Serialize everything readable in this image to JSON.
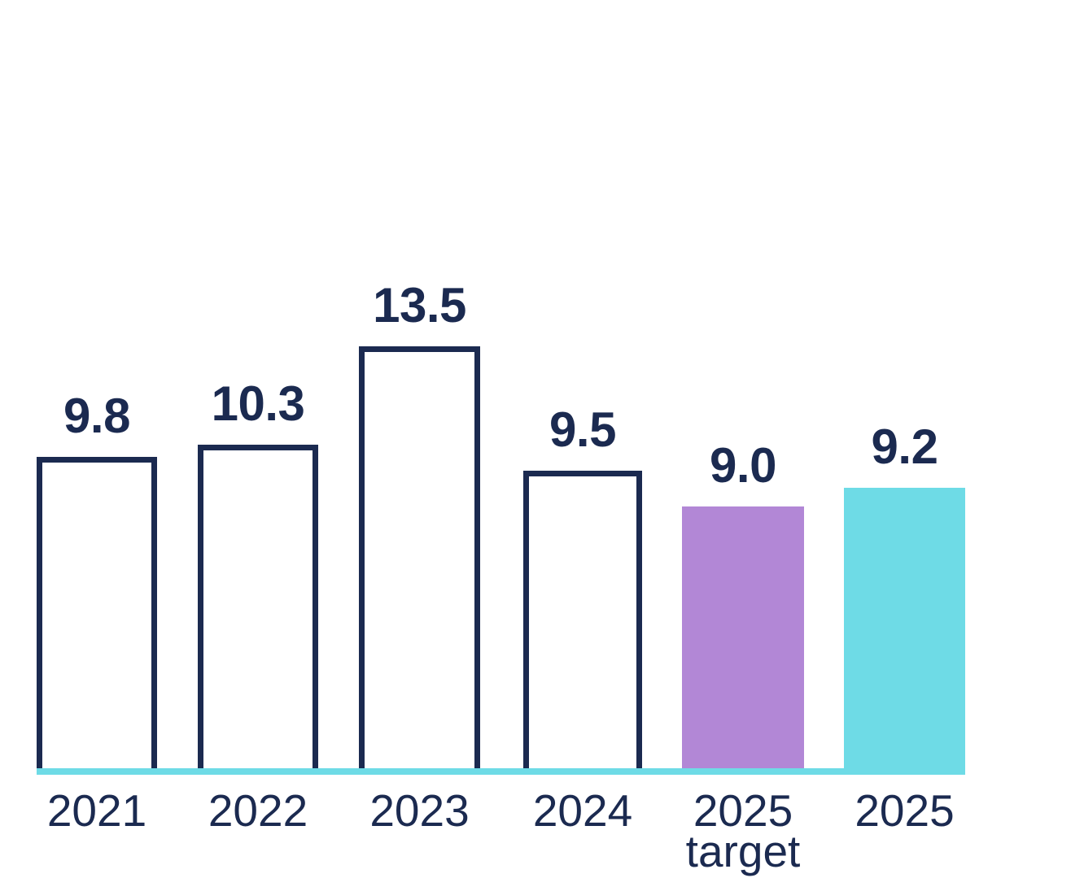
{
  "chart_data": {
    "type": "bar",
    "title": "",
    "xlabel": "",
    "ylabel": "",
    "ylim": [
      0,
      14
    ],
    "grid": false,
    "legend": false,
    "categories": [
      "2021",
      "2022",
      "2023",
      "2024",
      "2025 target",
      "2025"
    ],
    "values": [
      9.8,
      10.3,
      13.5,
      9.5,
      9.0,
      9.2
    ],
    "bars": [
      {
        "category": "2021",
        "value": 9.8,
        "value_label": "9.8",
        "x_label_line1": "2021",
        "x_label_line2": "",
        "style": "outlined-white"
      },
      {
        "category": "2022",
        "value": 10.3,
        "value_label": "10.3",
        "x_label_line1": "2022",
        "x_label_line2": "",
        "style": "outlined-white"
      },
      {
        "category": "2023",
        "value": 13.5,
        "value_label": "13.5",
        "x_label_line1": "2023",
        "x_label_line2": "",
        "style": "outlined-white"
      },
      {
        "category": "2024",
        "value": 9.5,
        "value_label": "9.5",
        "x_label_line1": "2024",
        "x_label_line2": "",
        "style": "outlined-white"
      },
      {
        "category": "2025 target",
        "value": 9.0,
        "value_label": "9.0",
        "x_label_line1": "2025",
        "x_label_line2": "target",
        "style": "filled-purple"
      },
      {
        "category": "2025",
        "value": 9.2,
        "value_label": "9.2",
        "x_label_line1": "2025",
        "x_label_line2": "",
        "style": "filled-cyan"
      }
    ],
    "colors": {
      "navy": "#1b2a50",
      "purple": "#b287d6",
      "cyan": "#6edbe6",
      "baseline": "#6edbe6"
    }
  }
}
